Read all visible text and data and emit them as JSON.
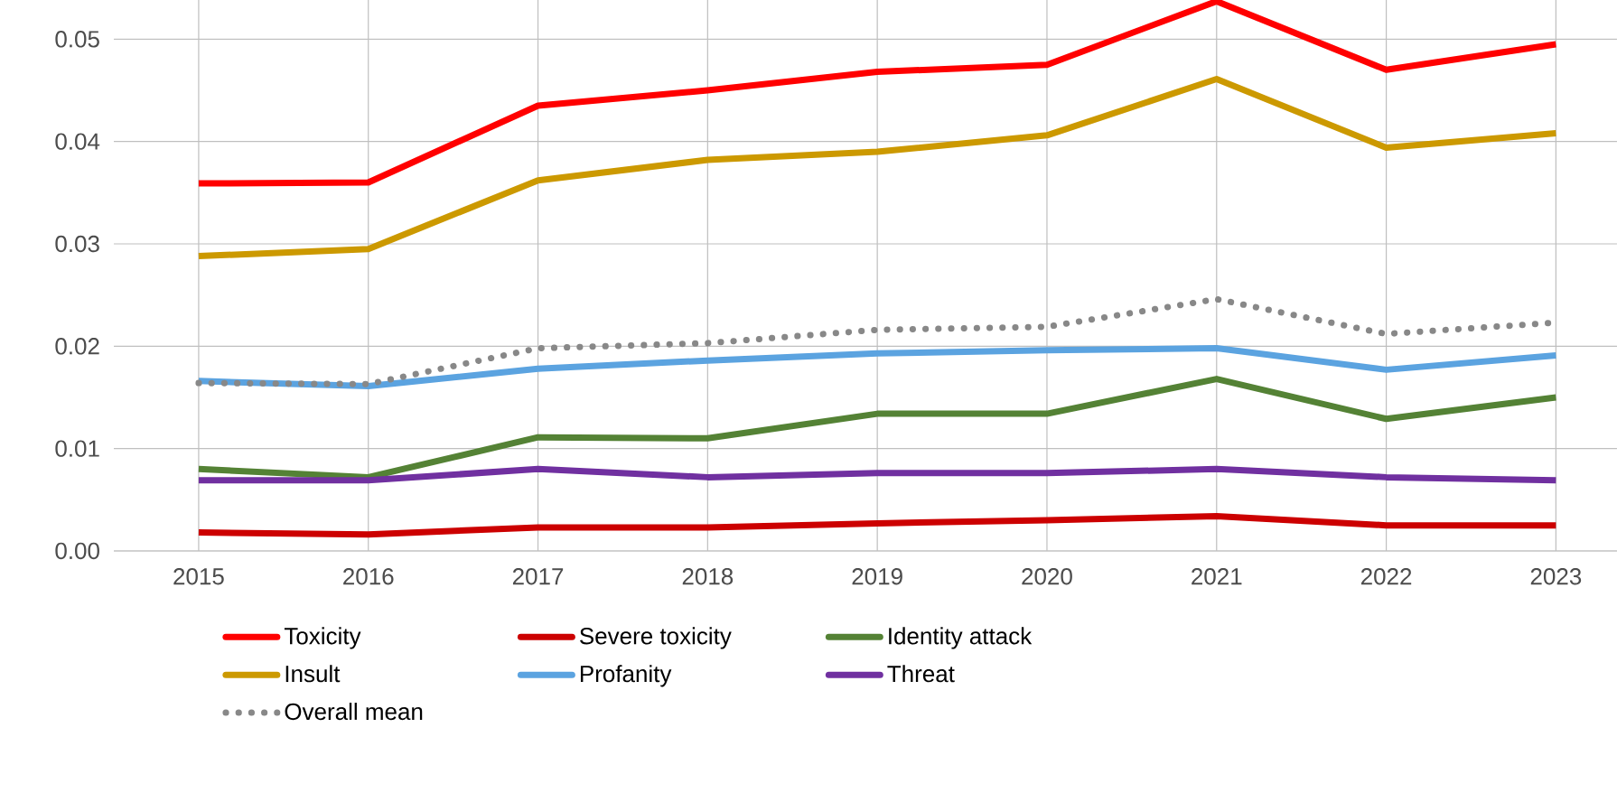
{
  "chart_data": {
    "type": "line",
    "categories": [
      "2015",
      "2016",
      "2017",
      "2018",
      "2019",
      "2020",
      "2021",
      "2022",
      "2023"
    ],
    "series": [
      {
        "name": "Toxicity",
        "color": "#ff0000",
        "values": [
          0.0359,
          0.036,
          0.0435,
          0.045,
          0.0468,
          0.0475,
          0.0537,
          0.047,
          0.0495
        ]
      },
      {
        "name": "Severe toxicity",
        "color": "#cc0000",
        "values": [
          0.0018,
          0.0016,
          0.0023,
          0.0023,
          0.0027,
          0.003,
          0.0034,
          0.0025,
          0.0025
        ]
      },
      {
        "name": "Identity attack",
        "color": "#548235",
        "values": [
          0.008,
          0.0072,
          0.0111,
          0.011,
          0.0134,
          0.0134,
          0.0168,
          0.0129,
          0.015
        ]
      },
      {
        "name": "Insult",
        "color": "#cc9900",
        "values": [
          0.0288,
          0.0295,
          0.0362,
          0.0382,
          0.039,
          0.0406,
          0.0461,
          0.0394,
          0.0408
        ]
      },
      {
        "name": "Profanity",
        "color": "#5ba3e0",
        "values": [
          0.0166,
          0.0161,
          0.0178,
          0.0186,
          0.0193,
          0.0196,
          0.0198,
          0.0177,
          0.0191
        ]
      },
      {
        "name": "Threat",
        "color": "#7030a0",
        "values": [
          0.0069,
          0.0069,
          0.008,
          0.0072,
          0.0076,
          0.0076,
          0.008,
          0.0072,
          0.0069
        ]
      },
      {
        "name": "Overall mean",
        "color": "#888888",
        "line_style": "dotted",
        "values": [
          0.0164,
          0.0163,
          0.0198,
          0.0203,
          0.0216,
          0.0219,
          0.0246,
          0.0212,
          0.0223
        ]
      }
    ],
    "ylim": [
      0,
      0.054
    ],
    "yticks": [
      {
        "value": 0,
        "label": "0.00"
      },
      0.01,
      0.02,
      0.03,
      0.04,
      0.05
    ],
    "grid": true,
    "legend": "bottom",
    "marker": "none"
  }
}
